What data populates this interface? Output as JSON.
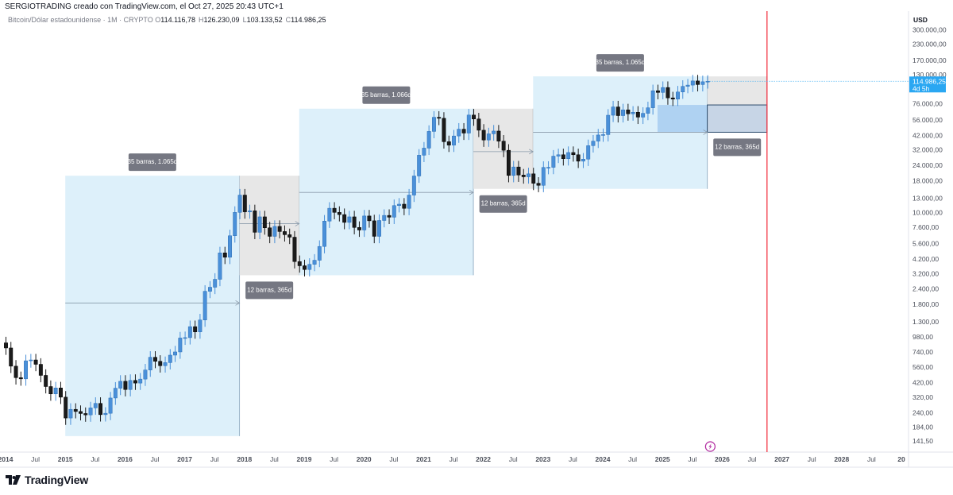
{
  "header": {
    "credit": "SERGIOTRADING creado con TradingView.com, el Oct 27, 2025 20:43 UTC+1",
    "symbol": "Bitcoin/Dólar estadounidense · 1M · CRYPTO",
    "ohlc": [
      {
        "key": "O",
        "value": "114.116,78"
      },
      {
        "key": "H",
        "value": "126.230,09"
      },
      {
        "key": "L",
        "value": "103.133,52"
      },
      {
        "key": "C",
        "value": "114.986,25"
      }
    ]
  },
  "footer": {
    "brand": "TradingView"
  },
  "colors": {
    "up": "#4a90d9",
    "down": "#1b1b1b",
    "zone_blue": "#dbeffa",
    "zone_gray": "#e6e6e6",
    "label_bg": "#757782",
    "price_badge": "#2aa7f2",
    "red_line": "#f23645",
    "highlight_blue": "#a7cdf0"
  },
  "chart_data": {
    "type": "candlestick",
    "scale": "log",
    "currency_label": "USD",
    "y_ticks": [
      "300.000,00",
      "230.000,00",
      "170.000,00",
      "130.000,00",
      "76.000,00",
      "56.000,00",
      "42.000,00",
      "32.000,00",
      "24.000,00",
      "18.000,00",
      "13.000,00",
      "10.000,00",
      "7.600,00",
      "5.600,00",
      "4.200,00",
      "3.200,00",
      "2.400,00",
      "1.800,00",
      "1.300,00",
      "980,00",
      "740,00",
      "560,00",
      "420,00",
      "320,00",
      "240,00",
      "184,00",
      "141,50"
    ],
    "y_tick_values": [
      300000,
      230000,
      170000,
      130000,
      76000,
      56000,
      42000,
      32000,
      24000,
      18000,
      13000,
      10000,
      7600,
      5600,
      4200,
      3200,
      2400,
      1800,
      1300,
      980,
      740,
      560,
      420,
      320,
      240,
      184,
      141.5
    ],
    "ylim": [
      125,
      380000
    ],
    "x_ticks": [
      {
        "label": "2014",
        "t": 2014.0
      },
      {
        "label": "Jul",
        "t": 2014.5
      },
      {
        "label": "2015",
        "t": 2015.0
      },
      {
        "label": "Jul",
        "t": 2015.5
      },
      {
        "label": "2016",
        "t": 2016.0
      },
      {
        "label": "Jul",
        "t": 2016.5
      },
      {
        "label": "2017",
        "t": 2017.0
      },
      {
        "label": "Jul",
        "t": 2017.5
      },
      {
        "label": "2018",
        "t": 2018.0
      },
      {
        "label": "Jul",
        "t": 2018.5
      },
      {
        "label": "2019",
        "t": 2019.0
      },
      {
        "label": "Jul",
        "t": 2019.5
      },
      {
        "label": "2020",
        "t": 2020.0
      },
      {
        "label": "Jul",
        "t": 2020.5
      },
      {
        "label": "2021",
        "t": 2021.0
      },
      {
        "label": "Jul",
        "t": 2021.5
      },
      {
        "label": "2022",
        "t": 2022.0
      },
      {
        "label": "Jul",
        "t": 2022.5
      },
      {
        "label": "2023",
        "t": 2023.0
      },
      {
        "label": "Jul",
        "t": 2023.5
      },
      {
        "label": "2024",
        "t": 2024.0
      },
      {
        "label": "Jul",
        "t": 2024.5
      },
      {
        "label": "2025",
        "t": 2025.0
      },
      {
        "label": "Jul",
        "t": 2025.5
      },
      {
        "label": "2026",
        "t": 2026.0
      },
      {
        "label": "Jul",
        "t": 2026.5
      },
      {
        "label": "2027",
        "t": 2027.0
      },
      {
        "label": "Jul",
        "t": 2027.5
      },
      {
        "label": "2028",
        "t": 2028.0
      },
      {
        "label": "Jul",
        "t": 2028.5
      },
      {
        "label": "20",
        "t": 2029.0
      }
    ],
    "closes": [
      [
        2014.0,
        800
      ],
      [
        2014.083,
        570
      ],
      [
        2014.167,
        460
      ],
      [
        2014.25,
        450
      ],
      [
        2014.333,
        630
      ],
      [
        2014.417,
        640
      ],
      [
        2014.5,
        590
      ],
      [
        2014.583,
        480
      ],
      [
        2014.667,
        390
      ],
      [
        2014.75,
        340
      ],
      [
        2014.833,
        380
      ],
      [
        2014.917,
        320
      ],
      [
        2015.0,
        217
      ],
      [
        2015.083,
        255
      ],
      [
        2015.167,
        245
      ],
      [
        2015.25,
        236
      ],
      [
        2015.333,
        230
      ],
      [
        2015.417,
        262
      ],
      [
        2015.5,
        285
      ],
      [
        2015.583,
        231
      ],
      [
        2015.667,
        237
      ],
      [
        2015.75,
        315
      ],
      [
        2015.833,
        378
      ],
      [
        2015.917,
        430
      ],
      [
        2016.0,
        369
      ],
      [
        2016.083,
        437
      ],
      [
        2016.167,
        416
      ],
      [
        2016.25,
        448
      ],
      [
        2016.333,
        531
      ],
      [
        2016.417,
        673
      ],
      [
        2016.5,
        624
      ],
      [
        2016.583,
        575
      ],
      [
        2016.667,
        609
      ],
      [
        2016.75,
        700
      ],
      [
        2016.833,
        743
      ],
      [
        2016.917,
        963
      ],
      [
        2017.0,
        970
      ],
      [
        2017.083,
        1190
      ],
      [
        2017.167,
        1080
      ],
      [
        2017.25,
        1348
      ],
      [
        2017.333,
        2300
      ],
      [
        2017.417,
        2480
      ],
      [
        2017.5,
        2875
      ],
      [
        2017.583,
        4703
      ],
      [
        2017.667,
        4338
      ],
      [
        2017.75,
        6468
      ],
      [
        2017.833,
        10000
      ],
      [
        2017.917,
        13800
      ],
      [
        2018.0,
        10100
      ],
      [
        2018.083,
        10300
      ],
      [
        2018.167,
        6900
      ],
      [
        2018.25,
        9200
      ],
      [
        2018.333,
        7500
      ],
      [
        2018.417,
        6400
      ],
      [
        2018.5,
        7700
      ],
      [
        2018.583,
        7000
      ],
      [
        2018.667,
        6600
      ],
      [
        2018.75,
        6300
      ],
      [
        2018.833,
        4000
      ],
      [
        2018.917,
        3700
      ],
      [
        2019.0,
        3450
      ],
      [
        2019.083,
        3800
      ],
      [
        2019.167,
        4100
      ],
      [
        2019.25,
        5300
      ],
      [
        2019.333,
        8500
      ],
      [
        2019.417,
        10800
      ],
      [
        2019.5,
        10000
      ],
      [
        2019.583,
        9600
      ],
      [
        2019.667,
        8300
      ],
      [
        2019.75,
        9200
      ],
      [
        2019.833,
        7550
      ],
      [
        2019.917,
        7200
      ],
      [
        2020.0,
        9350
      ],
      [
        2020.083,
        8550
      ],
      [
        2020.167,
        6400
      ],
      [
        2020.25,
        8600
      ],
      [
        2020.333,
        9450
      ],
      [
        2020.417,
        9140
      ],
      [
        2020.5,
        11350
      ],
      [
        2020.583,
        11650
      ],
      [
        2020.667,
        10780
      ],
      [
        2020.75,
        13800
      ],
      [
        2020.833,
        19700
      ],
      [
        2020.917,
        29000
      ],
      [
        2021.0,
        33100
      ],
      [
        2021.083,
        45200
      ],
      [
        2021.167,
        58800
      ],
      [
        2021.25,
        57700
      ],
      [
        2021.333,
        37300
      ],
      [
        2021.417,
        35000
      ],
      [
        2021.5,
        41500
      ],
      [
        2021.583,
        47100
      ],
      [
        2021.667,
        43800
      ],
      [
        2021.75,
        61300
      ],
      [
        2021.833,
        57000
      ],
      [
        2021.917,
        46200
      ],
      [
        2022.0,
        38500
      ],
      [
        2022.083,
        43200
      ],
      [
        2022.167,
        45500
      ],
      [
        2022.25,
        37700
      ],
      [
        2022.333,
        31800
      ],
      [
        2022.417,
        19900
      ],
      [
        2022.5,
        23300
      ],
      [
        2022.583,
        20050
      ],
      [
        2022.667,
        19400
      ],
      [
        2022.75,
        20500
      ],
      [
        2022.833,
        17200
      ],
      [
        2022.917,
        16550
      ],
      [
        2023.0,
        23100
      ],
      [
        2023.083,
        23150
      ],
      [
        2023.167,
        28500
      ],
      [
        2023.25,
        29250
      ],
      [
        2023.333,
        27200
      ],
      [
        2023.417,
        30500
      ],
      [
        2023.5,
        29250
      ],
      [
        2023.583,
        25950
      ],
      [
        2023.667,
        26970
      ],
      [
        2023.75,
        34650
      ],
      [
        2023.833,
        37700
      ],
      [
        2023.917,
        42280
      ],
      [
        2024.0,
        42580
      ],
      [
        2024.083,
        61100
      ],
      [
        2024.167,
        71300
      ],
      [
        2024.25,
        60650
      ],
      [
        2024.333,
        67500
      ],
      [
        2024.417,
        62700
      ],
      [
        2024.5,
        64600
      ],
      [
        2024.583,
        58970
      ],
      [
        2024.667,
        63300
      ],
      [
        2024.75,
        70200
      ],
      [
        2024.833,
        96400
      ],
      [
        2024.917,
        93400
      ],
      [
        2025.0,
        102400
      ],
      [
        2025.083,
        84400
      ],
      [
        2025.167,
        82500
      ],
      [
        2025.25,
        94200
      ],
      [
        2025.333,
        104600
      ],
      [
        2025.417,
        107100
      ],
      [
        2025.5,
        115700
      ],
      [
        2025.583,
        108200
      ],
      [
        2025.667,
        114000
      ],
      [
        2025.75,
        114986.25
      ]
    ],
    "current_price": {
      "label": "114.986,25",
      "countdown": "4d 5h",
      "value": 114986.25
    },
    "vertical_marker": {
      "t": 2026.75
    },
    "measurements": [
      {
        "label": "35 barras, 1.065d",
        "t0": 2015.0,
        "t1": 2017.917,
        "p_low": 155,
        "p_high": 19800,
        "kind": "blue"
      },
      {
        "label": "12 barras, 365d",
        "t0": 2017.917,
        "t1": 2018.917,
        "p_low": 3100,
        "p_high": 19800,
        "kind": "gray"
      },
      {
        "label": "35 barras, 1.066d",
        "t0": 2018.917,
        "t1": 2021.833,
        "p_low": 3100,
        "p_high": 69000,
        "kind": "blue"
      },
      {
        "label": "12 barras, 365d",
        "t0": 2021.833,
        "t1": 2022.833,
        "p_low": 15500,
        "p_high": 69000,
        "kind": "gray"
      },
      {
        "label": "35 barras, 1.065d",
        "t0": 2022.833,
        "t1": 2025.75,
        "p_low": 15500,
        "p_high": 126000,
        "kind": "blue"
      },
      {
        "label": "12 barras, 365d",
        "t0": 2025.75,
        "t1": 2026.75,
        "p_low": 44500,
        "p_high": 126000,
        "kind": "gray"
      }
    ]
  }
}
